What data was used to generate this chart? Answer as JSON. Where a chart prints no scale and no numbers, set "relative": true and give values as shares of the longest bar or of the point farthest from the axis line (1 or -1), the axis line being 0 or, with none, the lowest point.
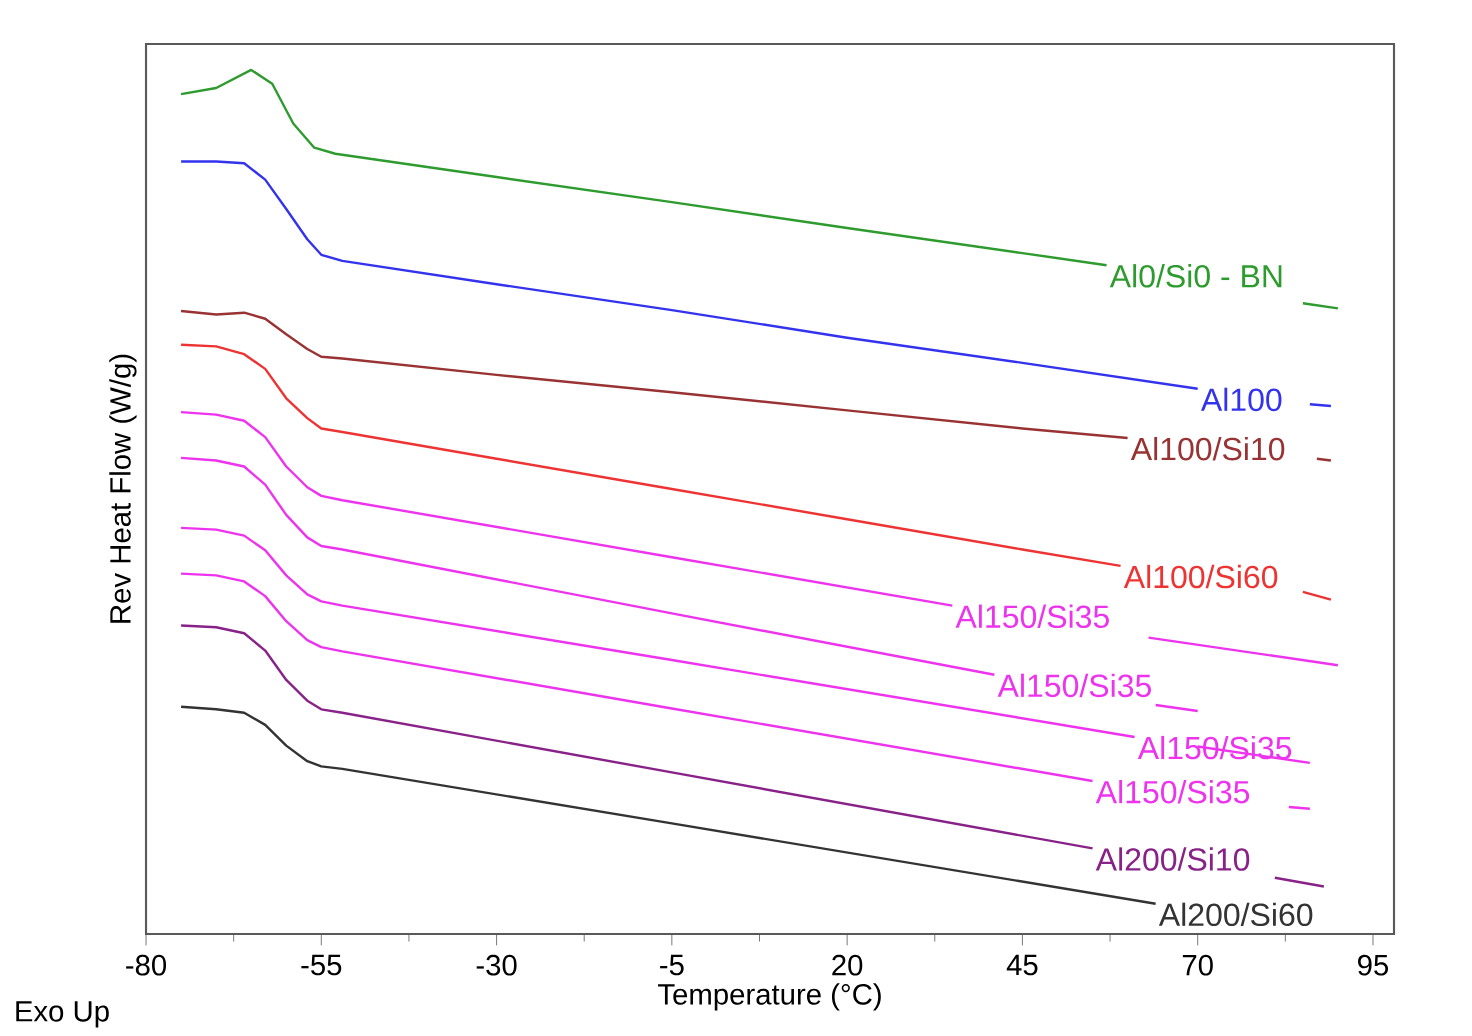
{
  "chart_data": {
    "type": "line",
    "relative": true,
    "xlabel": "Temperature (°C)",
    "ylabel": "Rev Heat Flow (W/g)",
    "annotations": [
      "Exo Up"
    ],
    "xlim": [
      -80,
      98
    ],
    "xticks": [
      -80,
      -55,
      -30,
      -5,
      20,
      45,
      70,
      95
    ],
    "series": [
      {
        "name": "Al0/Si0 - BN",
        "color": "#2e9b2e",
        "x": [
          -75,
          -70,
          -65,
          -62,
          -59,
          -56,
          -53,
          -30,
          -5,
          20,
          45,
          57,
          70,
          85,
          90
        ],
        "values": [
          0.972,
          0.979,
          1.0,
          0.984,
          0.938,
          0.91,
          0.903,
          0.876,
          0.847,
          0.817,
          0.788,
          0.774,
          null,
          0.73,
          0.724
        ]
      },
      {
        "name": "Al100",
        "color": "#3333ee",
        "x": [
          -75,
          -70,
          -66,
          -63,
          -60,
          -57,
          -55,
          -52,
          -30,
          -5,
          20,
          45,
          70,
          80,
          86,
          89
        ],
        "values": [
          0.894,
          0.894,
          0.892,
          0.873,
          0.839,
          0.804,
          0.786,
          0.779,
          0.752,
          0.722,
          0.69,
          0.661,
          0.631,
          null,
          0.613,
          0.611
        ]
      },
      {
        "name": "Al100/Si10",
        "color": "#993333",
        "x": [
          -75,
          -70,
          -66,
          -63,
          -60,
          -57,
          -55,
          -52,
          -30,
          -5,
          20,
          45,
          60,
          75,
          87,
          89
        ],
        "values": [
          0.721,
          0.717,
          0.719,
          0.712,
          0.694,
          0.677,
          0.668,
          0.666,
          0.647,
          0.627,
          0.606,
          0.585,
          0.574,
          null,
          0.55,
          0.548
        ]
      },
      {
        "name": "Al100/Si60",
        "color": "#ee3333",
        "x": [
          -75,
          -70,
          -66,
          -63,
          -60,
          -57,
          -55,
          -52,
          -30,
          -5,
          20,
          45,
          59,
          75,
          85,
          89
        ],
        "values": [
          0.682,
          0.68,
          0.671,
          0.654,
          0.62,
          0.597,
          0.585,
          0.581,
          0.55,
          0.515,
          0.48,
          0.445,
          0.426,
          null,
          0.396,
          0.387
        ]
      },
      {
        "name": "Al150/Si35",
        "color": "#ee33ee",
        "x": [
          -75,
          -70,
          -66,
          -63,
          -60,
          -57,
          -55,
          -52,
          -5,
          35,
          50,
          63,
          90
        ],
        "values": [
          0.604,
          0.601,
          0.594,
          0.575,
          0.541,
          0.517,
          0.507,
          0.502,
          0.436,
          0.38,
          null,
          0.343,
          0.311
        ]
      },
      {
        "name": "Al150/Si35",
        "color": "#ee33ee",
        "x": [
          -75,
          -70,
          -66,
          -63,
          -60,
          -57,
          -55,
          -52,
          -5,
          41,
          55,
          64,
          70
        ],
        "values": [
          0.551,
          0.548,
          0.541,
          0.52,
          0.485,
          0.459,
          0.449,
          0.445,
          0.371,
          0.3,
          null,
          0.265,
          0.258
        ]
      },
      {
        "name": "Al150/Si35",
        "color": "#ee33ee",
        "x": [
          -75,
          -70,
          -66,
          -63,
          -60,
          -57,
          -55,
          -52,
          -5,
          61,
          65,
          70,
          86
        ],
        "values": [
          0.47,
          0.468,
          0.461,
          0.444,
          0.415,
          0.393,
          0.385,
          0.38,
          0.317,
          0.228,
          null,
          0.217,
          0.198
        ]
      },
      {
        "name": "Al150/Si35",
        "color": "#ee33ee",
        "x": [
          -75,
          -70,
          -66,
          -63,
          -60,
          -57,
          -55,
          -52,
          -5,
          55,
          70,
          83,
          86
        ],
        "values": [
          0.417,
          0.415,
          0.408,
          0.391,
          0.362,
          0.34,
          0.332,
          0.327,
          0.261,
          0.177,
          null,
          0.147,
          0.145
        ]
      },
      {
        "name": "Al200/Si10",
        "color": "#882288",
        "x": [
          -75,
          -70,
          -66,
          -63,
          -60,
          -57,
          -55,
          -52,
          -5,
          55,
          70,
          81,
          88
        ],
        "values": [
          0.357,
          0.355,
          0.348,
          0.328,
          0.294,
          0.27,
          0.26,
          0.256,
          0.187,
          0.099,
          null,
          0.065,
          0.055
        ]
      },
      {
        "name": "Al200/Si60",
        "color": "#333333",
        "x": [
          -75,
          -70,
          -66,
          -63,
          -60,
          -57,
          -55,
          -52,
          -5,
          64
        ],
        "values": [
          0.263,
          0.26,
          0.256,
          0.242,
          0.218,
          0.2,
          0.194,
          0.191,
          0.128,
          0.035
        ]
      }
    ]
  }
}
